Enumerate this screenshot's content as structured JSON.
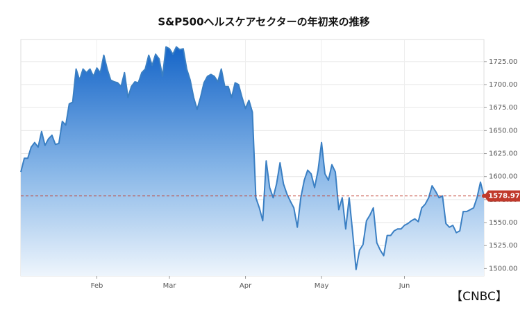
{
  "chart_data": {
    "type": "area",
    "title": "S&P500ヘルスケアセクターの年初来の推移",
    "source": "【CNBC】",
    "x": [
      0,
      1,
      2,
      3,
      4,
      5,
      6,
      7,
      8,
      9,
      10,
      11,
      12,
      13,
      14,
      15,
      16,
      17,
      18,
      19,
      20,
      21,
      22,
      23,
      24,
      25,
      26,
      27,
      28,
      29,
      30,
      31,
      32,
      33,
      34,
      35,
      36,
      37,
      38,
      39,
      40,
      41,
      42,
      43,
      44,
      45,
      46,
      47,
      48,
      49,
      50,
      51,
      52,
      53,
      54,
      55,
      56,
      57,
      58,
      59,
      60,
      61,
      62,
      63,
      64,
      65,
      66,
      67,
      68,
      69,
      70,
      71,
      72,
      73,
      74,
      75,
      76,
      77,
      78,
      79,
      80,
      81,
      82,
      83,
      84,
      85,
      86,
      87,
      88,
      89,
      90,
      91,
      92,
      93,
      94,
      95,
      96,
      97,
      98,
      99,
      100,
      101,
      102,
      103,
      104,
      105,
      106,
      107,
      108,
      109,
      110,
      111,
      112,
      113,
      114,
      115,
      116,
      117,
      118,
      119,
      120,
      121,
      122,
      123,
      124,
      125,
      126,
      127,
      128,
      129,
      130,
      131,
      132,
      133,
      134
    ],
    "series": [
      {
        "color": "#3a7fc3",
        "values": [
          1605,
          1620,
          1620,
          1632,
          1637,
          1632,
          1649,
          1634,
          1641,
          1645,
          1635,
          1636,
          1660,
          1656,
          1679,
          1681,
          1717,
          1705,
          1717,
          1713,
          1717,
          1709,
          1718,
          1713,
          1732,
          1717,
          1705,
          1703,
          1702,
          1698,
          1713,
          1686,
          1698,
          1703,
          1702,
          1713,
          1717,
          1732,
          1721,
          1733,
          1728,
          1709,
          1741,
          1739,
          1733,
          1741,
          1738,
          1739,
          1717,
          1705,
          1686,
          1673,
          1686,
          1702,
          1709,
          1711,
          1709,
          1703,
          1717,
          1698,
          1698,
          1686,
          1702,
          1700,
          1686,
          1674,
          1683,
          1670,
          1577,
          1566,
          1552,
          1617,
          1588,
          1577,
          1592,
          1615,
          1592,
          1581,
          1573,
          1566,
          1545,
          1577,
          1596,
          1607,
          1603,
          1588,
          1607,
          1637,
          1603,
          1596,
          1613,
          1605,
          1564,
          1577,
          1543,
          1577,
          1539,
          1499,
          1520,
          1526,
          1552,
          1558,
          1566,
          1528,
          1520,
          1514,
          1536,
          1536,
          1541,
          1543,
          1543,
          1547,
          1549,
          1552,
          1554,
          1551,
          1566,
          1570,
          1577,
          1590,
          1584,
          1577,
          1579,
          1549,
          1545,
          1547,
          1539,
          1541,
          1562,
          1562,
          1564,
          1566,
          1577,
          1594,
          1578.97
        ]
      }
    ],
    "last_value_color": "#c0392b",
    "xlim": [
      0,
      134
    ],
    "xticks": [
      {
        "value": 22,
        "label": "Feb"
      },
      {
        "value": 43,
        "label": "Mar"
      },
      {
        "value": 65,
        "label": "Apr"
      },
      {
        "value": 87,
        "label": "May"
      },
      {
        "value": 111,
        "label": "Jun"
      }
    ],
    "ylim": [
      1492,
      1749
    ],
    "yticks": [
      {
        "value": 1500,
        "label": "1500.00"
      },
      {
        "value": 1525,
        "label": "1525.00"
      },
      {
        "value": 1550,
        "label": "1550.00"
      },
      {
        "value": 1575,
        "label": "1575.00"
      },
      {
        "value": 1600,
        "label": "1600.00"
      },
      {
        "value": 1625,
        "label": "1625.00"
      },
      {
        "value": 1650,
        "label": "1650.00"
      },
      {
        "value": 1675,
        "label": "1675.00"
      },
      {
        "value": 1700,
        "label": "1700.00"
      },
      {
        "value": 1725,
        "label": "1725.00"
      }
    ],
    "grid": true
  }
}
